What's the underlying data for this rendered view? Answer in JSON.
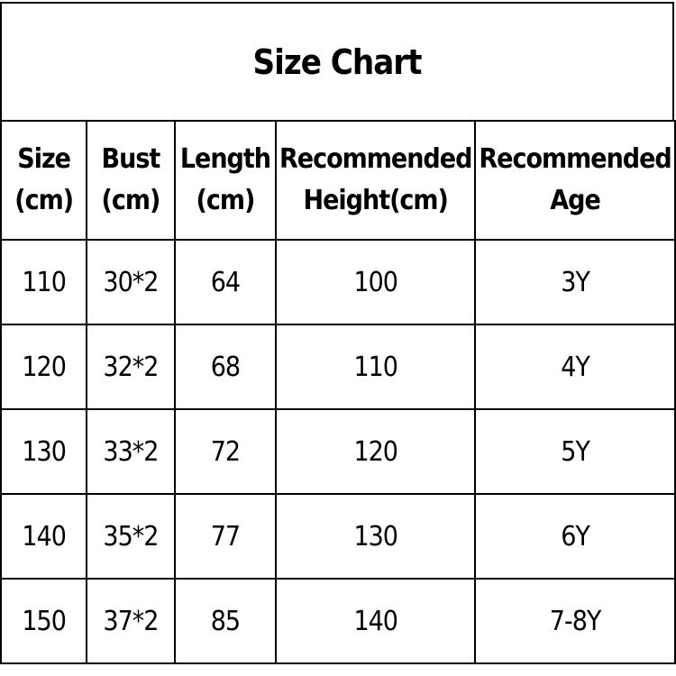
{
  "title": "Size Chart",
  "headers": [
    [
      "Size",
      "(cm)"
    ],
    [
      "Bust",
      "(cm)"
    ],
    [
      "Length",
      "(cm)"
    ],
    [
      "Recommended",
      "Height(cm)"
    ],
    [
      "Recommended",
      "Age"
    ]
  ],
  "rows": [
    [
      "110",
      "30*2",
      "64",
      "100",
      "3Y"
    ],
    [
      "120",
      "32*2",
      "68",
      "110",
      "4Y"
    ],
    [
      "130",
      "33*2",
      "72",
      "120",
      "5Y"
    ],
    [
      "140",
      "35*2",
      "77",
      "130",
      "6Y"
    ],
    [
      "150",
      "37*2",
      "85",
      "140",
      "7-8Y"
    ]
  ]
}
